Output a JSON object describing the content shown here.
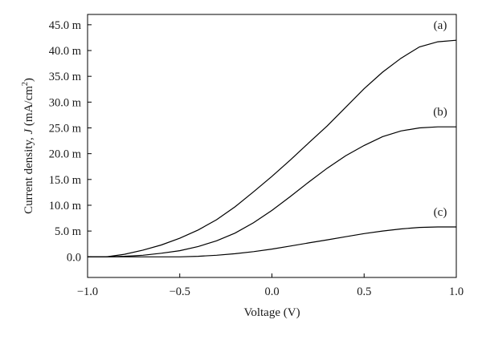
{
  "chart_data": {
    "type": "line",
    "xlabel": "Voltage (V)",
    "ylabel": {
      "prefix": "Current density, ",
      "symbol": "J",
      "units_open": " (mA/cm",
      "units_sup": "2",
      "units_close": ")"
    },
    "xlim": [
      -1.0,
      1.0
    ],
    "ylim": [
      -0.004,
      0.047
    ],
    "x_ticks": [
      {
        "value": -1.0,
        "label": "−1.0"
      },
      {
        "value": -0.5,
        "label": "−0.5"
      },
      {
        "value": 0.0,
        "label": "0.0"
      },
      {
        "value": 0.5,
        "label": "0.5"
      },
      {
        "value": 1.0,
        "label": "1.0"
      }
    ],
    "y_ticks": [
      {
        "value": 0.0,
        "label": "0.0"
      },
      {
        "value": 0.005,
        "label": "5.0 m"
      },
      {
        "value": 0.01,
        "label": "10.0 m"
      },
      {
        "value": 0.015,
        "label": "15.0 m"
      },
      {
        "value": 0.02,
        "label": "20.0 m"
      },
      {
        "value": 0.025,
        "label": "25.0 m"
      },
      {
        "value": 0.03,
        "label": "30.0 m"
      },
      {
        "value": 0.035,
        "label": "35.0 m"
      },
      {
        "value": 0.04,
        "label": "40.0 m"
      },
      {
        "value": 0.045,
        "label": "45.0 m"
      }
    ],
    "grid": false,
    "legend": "none",
    "line_color": "#000000",
    "series": [
      {
        "name": "(a)",
        "x": [
          -1.0,
          -0.9,
          -0.8,
          -0.7,
          -0.6,
          -0.5,
          -0.4,
          -0.3,
          -0.2,
          -0.1,
          0.0,
          0.1,
          0.2,
          0.3,
          0.4,
          0.5,
          0.6,
          0.7,
          0.8,
          0.9,
          1.0
        ],
        "y": [
          0.0,
          0.0,
          0.0005,
          0.0013,
          0.0023,
          0.0036,
          0.0052,
          0.0072,
          0.0097,
          0.0126,
          0.0156,
          0.0188,
          0.0221,
          0.0254,
          0.029,
          0.0326,
          0.0358,
          0.0385,
          0.0407,
          0.0417,
          0.042
        ]
      },
      {
        "name": "(b)",
        "x": [
          -1.0,
          -0.9,
          -0.8,
          -0.7,
          -0.6,
          -0.5,
          -0.4,
          -0.3,
          -0.2,
          -0.1,
          0.0,
          0.1,
          0.2,
          0.3,
          0.4,
          0.5,
          0.6,
          0.7,
          0.8,
          0.9,
          1.0
        ],
        "y": [
          0.0,
          0.0,
          0.0001,
          0.0003,
          0.0007,
          0.0012,
          0.002,
          0.0031,
          0.0046,
          0.0066,
          0.009,
          0.0117,
          0.0145,
          0.0172,
          0.0196,
          0.0216,
          0.0233,
          0.0244,
          0.025,
          0.0252,
          0.0252
        ]
      },
      {
        "name": "(c)",
        "x": [
          -1.0,
          -0.9,
          -0.8,
          -0.7,
          -0.6,
          -0.5,
          -0.4,
          -0.3,
          -0.2,
          -0.1,
          0.0,
          0.1,
          0.2,
          0.3,
          0.4,
          0.5,
          0.6,
          0.7,
          0.8,
          0.9,
          1.0
        ],
        "y": [
          0.0,
          0.0,
          0.0,
          0.0,
          0.0,
          0.0,
          0.0001,
          0.0003,
          0.0006,
          0.001,
          0.0015,
          0.0021,
          0.0027,
          0.0033,
          0.0039,
          0.0045,
          0.005,
          0.0054,
          0.0057,
          0.0058,
          0.0058
        ]
      }
    ]
  }
}
